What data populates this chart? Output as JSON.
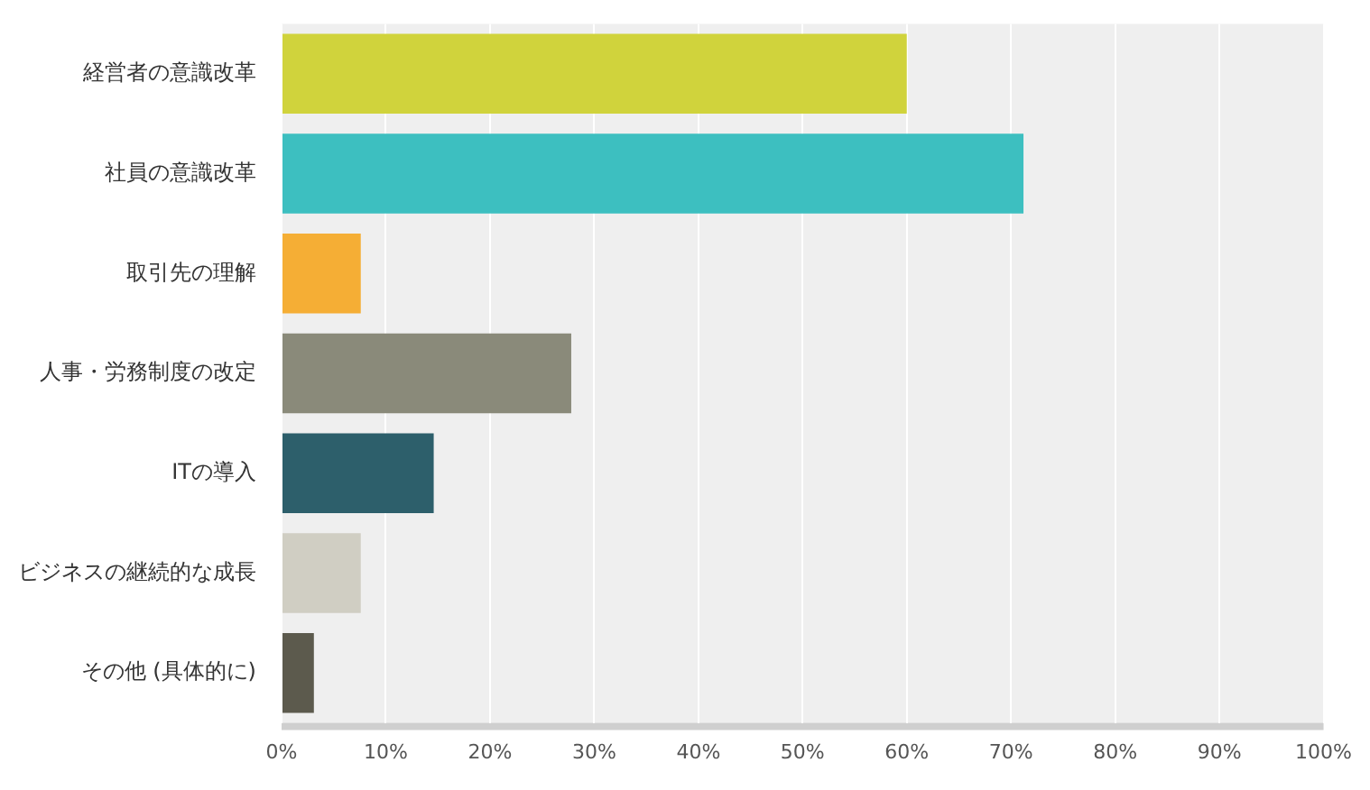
{
  "chart_data": {
    "type": "bar",
    "orientation": "horizontal",
    "categories": [
      "経営者の意識改革",
      "社員の意識改革",
      "取引先の理解",
      "人事・労務制度の改定",
      "ITの導入",
      "ビジネスの継続的な成長",
      "その他 (具体的に)"
    ],
    "values": [
      60,
      71.2,
      7.6,
      27.8,
      14.6,
      7.6,
      3.1
    ],
    "colors": [
      "#d0d33c",
      "#3dbfc0",
      "#f5ae35",
      "#8a8a7a",
      "#2d5f6b",
      "#d0cec3",
      "#5c5a4d"
    ],
    "xlim": [
      0,
      100
    ],
    "xticks": [
      {
        "value": 0,
        "label": "0%"
      },
      {
        "value": 10,
        "label": "10%"
      },
      {
        "value": 20,
        "label": "20%"
      },
      {
        "value": 30,
        "label": "30%"
      },
      {
        "value": 40,
        "label": "40%"
      },
      {
        "value": 50,
        "label": "50%"
      },
      {
        "value": 60,
        "label": "60%"
      },
      {
        "value": 70,
        "label": "70%"
      },
      {
        "value": 80,
        "label": "80%"
      },
      {
        "value": 90,
        "label": "90%"
      },
      {
        "value": 100,
        "label": "100%"
      }
    ],
    "grid": "x",
    "legend": false
  }
}
